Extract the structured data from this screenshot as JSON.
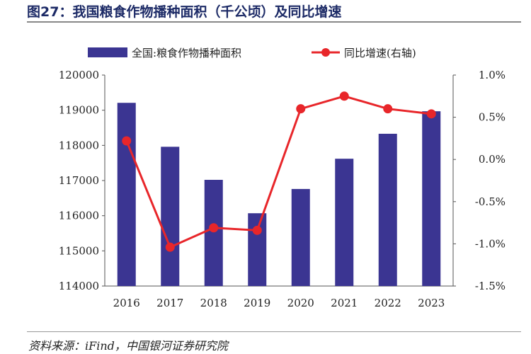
{
  "title": "图27：我国粮食作物播种面积（千公顷）及同比增速",
  "source": "资料来源：iFind，中国银河证券研究院",
  "chart_data": {
    "type": "bar+line",
    "categories": [
      "2016",
      "2017",
      "2018",
      "2019",
      "2020",
      "2021",
      "2022",
      "2023"
    ],
    "series": [
      {
        "name": "全国:粮食作物播种面积",
        "type": "bar",
        "axis": "left",
        "color": "#3b3592",
        "values": [
          119210,
          117960,
          117020,
          116070,
          116760,
          117620,
          118330,
          118970
        ]
      },
      {
        "name": "同比增速(右轴)",
        "type": "line",
        "axis": "right",
        "color": "#e8262a",
        "values": [
          0.22,
          -1.04,
          -0.81,
          -0.84,
          0.6,
          0.75,
          0.6,
          0.54
        ]
      }
    ],
    "left_axis": {
      "ylim": [
        114000,
        120000
      ],
      "ticks": [
        "114000",
        "115000",
        "116000",
        "117000",
        "118000",
        "119000",
        "120000"
      ]
    },
    "right_axis": {
      "ylim": [
        -1.5,
        1.0
      ],
      "unit": "%",
      "ticks": [
        "-1.5%",
        "-1.0%",
        "-0.5%",
        "0.0%",
        "0.5%",
        "1.0%"
      ]
    },
    "legend": "top",
    "grid": false
  }
}
